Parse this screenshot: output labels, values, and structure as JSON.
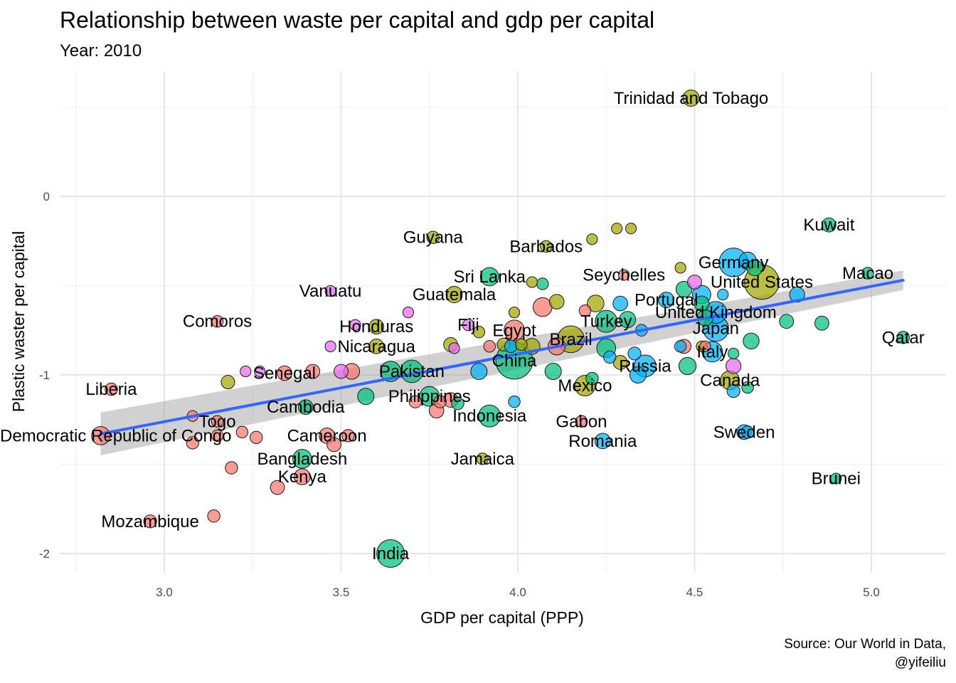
{
  "chart_data": {
    "type": "scatter",
    "title": "Relationship between waste per capital and gdp per capital",
    "subtitle": "Year: 2010",
    "xlabel": "GDP per capital (PPP)",
    "ylabel": "Plastic waster per capital",
    "caption_lines": [
      "Source: Our World in Data,",
      "@yifeiliu"
    ],
    "xlim": [
      2.75,
      5.2
    ],
    "ylim": [
      -2.1,
      0.6
    ],
    "x_ticks": [
      3.0,
      3.5,
      4.0,
      4.5,
      5.0
    ],
    "x_tick_labels": [
      "3.0",
      "3.5",
      "4.0",
      "4.5",
      "5.0"
    ],
    "y_ticks": [
      -2,
      -1,
      0
    ],
    "y_tick_labels": [
      "-2",
      "-1",
      "0"
    ],
    "grid": true,
    "colors": {
      "Africa": "#F8766D",
      "Americas": "#A3A500",
      "Asia": "#00BF7D",
      "Europe": "#00B0F6",
      "Oceania": "#E76BF3",
      "trend_line": "#3366FF",
      "confidence_band": "#999999"
    },
    "trend": {
      "x_start": 2.82,
      "y_start": -1.33,
      "x_end": 5.09,
      "y_end": -0.47,
      "band_half_width_start": 0.12,
      "band_half_width_end": 0.055
    },
    "points": [
      {
        "label": "Trinidad and Tobago",
        "x": 4.49,
        "y": 0.55,
        "size": 1.3,
        "group": "Americas"
      },
      {
        "label": "Kuwait",
        "x": 4.88,
        "y": -0.16,
        "size": 0.8,
        "group": "Asia"
      },
      {
        "label": "Guyana",
        "x": 3.76,
        "y": -0.23,
        "size": 0.5,
        "group": "Americas"
      },
      {
        "label": "Barbados",
        "x": 4.08,
        "y": -0.28,
        "size": 0.4,
        "group": "Americas"
      },
      {
        "label": "Germany",
        "x": 4.61,
        "y": -0.37,
        "size": 6.0,
        "group": "Europe"
      },
      {
        "label": "Macao",
        "x": 4.99,
        "y": -0.43,
        "size": 0.4,
        "group": "Asia"
      },
      {
        "label": "Sri Lanka",
        "x": 3.92,
        "y": -0.45,
        "size": 1.8,
        "group": "Asia"
      },
      {
        "label": "Seychelles",
        "x": 4.3,
        "y": -0.44,
        "size": 0.3,
        "group": "Africa"
      },
      {
        "label": "United States",
        "x": 4.69,
        "y": -0.48,
        "size": 9.5,
        "group": "Americas"
      },
      {
        "label": "Vanuatu",
        "x": 3.47,
        "y": -0.53,
        "size": 0.3,
        "group": "Oceania"
      },
      {
        "label": "Guatemala",
        "x": 3.82,
        "y": -0.55,
        "size": 1.3,
        "group": "Americas"
      },
      {
        "label": "Portugal",
        "x": 4.42,
        "y": -0.58,
        "size": 1.1,
        "group": "Europe"
      },
      {
        "label": "United Kingdom",
        "x": 4.56,
        "y": -0.65,
        "size": 3.0,
        "group": "Europe"
      },
      {
        "label": "Turkey",
        "x": 4.25,
        "y": -0.7,
        "size": 3.0,
        "group": "Asia"
      },
      {
        "label": "Comoros",
        "x": 3.15,
        "y": -0.7,
        "size": 0.4,
        "group": "Africa"
      },
      {
        "label": "Honduras",
        "x": 3.6,
        "y": -0.73,
        "size": 0.9,
        "group": "Americas"
      },
      {
        "label": "Fiji",
        "x": 3.86,
        "y": -0.72,
        "size": 0.4,
        "group": "Oceania"
      },
      {
        "label": "Egypt",
        "x": 3.99,
        "y": -0.75,
        "size": 2.5,
        "group": "Africa"
      },
      {
        "label": "Japan",
        "x": 4.56,
        "y": -0.74,
        "size": 4.5,
        "group": "Europe"
      },
      {
        "label": "Qatar",
        "x": 5.09,
        "y": -0.79,
        "size": 0.5,
        "group": "Asia"
      },
      {
        "label": "Brazil",
        "x": 4.15,
        "y": -0.8,
        "size": 5.0,
        "group": "Americas"
      },
      {
        "label": "Nicaragua",
        "x": 3.6,
        "y": -0.84,
        "size": 0.9,
        "group": "Americas"
      },
      {
        "label": "Italy",
        "x": 4.55,
        "y": -0.87,
        "size": 2.5,
        "group": "Europe"
      },
      {
        "label": "China",
        "x": 3.99,
        "y": -0.92,
        "size": 11.0,
        "group": "Asia"
      },
      {
        "label": "Russia",
        "x": 4.36,
        "y": -0.95,
        "size": 3.0,
        "group": "Europe"
      },
      {
        "label": "Senegal",
        "x": 3.34,
        "y": -0.99,
        "size": 0.9,
        "group": "Africa"
      },
      {
        "label": "Pakistan",
        "x": 3.7,
        "y": -0.98,
        "size": 3.2,
        "group": "Asia"
      },
      {
        "label": "Canada",
        "x": 4.6,
        "y": -1.03,
        "size": 2.0,
        "group": "Americas"
      },
      {
        "label": "Mexico",
        "x": 4.19,
        "y": -1.06,
        "size": 2.5,
        "group": "Americas"
      },
      {
        "label": "Liberia",
        "x": 2.85,
        "y": -1.08,
        "size": 0.5,
        "group": "Africa"
      },
      {
        "label": "Philippines",
        "x": 3.75,
        "y": -1.12,
        "size": 2.3,
        "group": "Asia"
      },
      {
        "label": "Cambodia",
        "x": 3.4,
        "y": -1.18,
        "size": 0.9,
        "group": "Asia"
      },
      {
        "label": "Indonesia",
        "x": 3.92,
        "y": -1.23,
        "size": 3.0,
        "group": "Asia"
      },
      {
        "label": "Togo",
        "x": 3.15,
        "y": -1.26,
        "size": 0.4,
        "group": "Africa"
      },
      {
        "label": "Gabon",
        "x": 4.18,
        "y": -1.26,
        "size": 0.4,
        "group": "Africa"
      },
      {
        "label": "Democratic Republic of Congo",
        "x": 2.82,
        "y": -1.34,
        "size": 1.8,
        "group": "Africa"
      },
      {
        "label": "Cameroon",
        "x": 3.46,
        "y": -1.34,
        "size": 1.1,
        "group": "Africa"
      },
      {
        "label": "Sweden",
        "x": 4.64,
        "y": -1.32,
        "size": 0.9,
        "group": "Europe"
      },
      {
        "label": "Romania",
        "x": 4.24,
        "y": -1.37,
        "size": 1.1,
        "group": "Europe"
      },
      {
        "label": "Bangladesh",
        "x": 3.39,
        "y": -1.47,
        "size": 2.0,
        "group": "Asia"
      },
      {
        "label": "Jamaica",
        "x": 3.9,
        "y": -1.47,
        "size": 0.4,
        "group": "Americas"
      },
      {
        "label": "Kenya",
        "x": 3.39,
        "y": -1.57,
        "size": 1.2,
        "group": "Africa"
      },
      {
        "label": "Brunei",
        "x": 4.9,
        "y": -1.58,
        "size": 0.3,
        "group": "Asia"
      },
      {
        "label": "Mozambique",
        "x": 2.96,
        "y": -1.82,
        "size": 0.6,
        "group": "Africa"
      },
      {
        "label": "India",
        "x": 3.64,
        "y": -2.0,
        "size": 5.5,
        "group": "Asia"
      },
      {
        "label": "",
        "x": 4.28,
        "y": -0.18,
        "size": 0.3,
        "group": "Americas"
      },
      {
        "label": "",
        "x": 4.32,
        "y": -0.18,
        "size": 0.3,
        "group": "Americas"
      },
      {
        "label": "",
        "x": 4.21,
        "y": -0.24,
        "size": 0.3,
        "group": "Americas"
      },
      {
        "label": "",
        "x": 4.65,
        "y": -0.36,
        "size": 1.5,
        "group": "Europe"
      },
      {
        "label": "",
        "x": 4.67,
        "y": -0.4,
        "size": 1.2,
        "group": "Asia"
      },
      {
        "label": "",
        "x": 4.46,
        "y": -0.4,
        "size": 0.3,
        "group": "Americas"
      },
      {
        "label": "",
        "x": 4.04,
        "y": -0.48,
        "size": 0.3,
        "group": "Americas"
      },
      {
        "label": "",
        "x": 4.07,
        "y": -0.49,
        "size": 0.4,
        "group": "Asia"
      },
      {
        "label": "",
        "x": 4.5,
        "y": -0.48,
        "size": 0.8,
        "group": "Oceania"
      },
      {
        "label": "",
        "x": 4.47,
        "y": -0.52,
        "size": 1.2,
        "group": "Asia"
      },
      {
        "label": "",
        "x": 4.52,
        "y": -0.55,
        "size": 1.8,
        "group": "Europe"
      },
      {
        "label": "",
        "x": 4.58,
        "y": -0.55,
        "size": 0.3,
        "group": "Europe"
      },
      {
        "label": "",
        "x": 4.79,
        "y": -0.55,
        "size": 1.0,
        "group": "Europe"
      },
      {
        "label": "",
        "x": 4.11,
        "y": -0.59,
        "size": 0.9,
        "group": "Americas"
      },
      {
        "label": "",
        "x": 4.07,
        "y": -0.62,
        "size": 2.0,
        "group": "Africa"
      },
      {
        "label": "",
        "x": 4.22,
        "y": -0.6,
        "size": 1.4,
        "group": "Americas"
      },
      {
        "label": "",
        "x": 4.29,
        "y": -0.6,
        "size": 0.9,
        "group": "Europe"
      },
      {
        "label": "",
        "x": 4.52,
        "y": -0.6,
        "size": 1.0,
        "group": "Asia"
      },
      {
        "label": "",
        "x": 4.19,
        "y": -0.64,
        "size": 0.4,
        "group": "Africa"
      },
      {
        "label": "",
        "x": 3.69,
        "y": -0.65,
        "size": 0.3,
        "group": "Oceania"
      },
      {
        "label": "",
        "x": 3.99,
        "y": -0.65,
        "size": 0.3,
        "group": "Americas"
      },
      {
        "label": "",
        "x": 4.31,
        "y": -0.69,
        "size": 1.3,
        "group": "Asia"
      },
      {
        "label": "",
        "x": 4.53,
        "y": -0.68,
        "size": 1.2,
        "group": "Asia"
      },
      {
        "label": "",
        "x": 4.76,
        "y": -0.7,
        "size": 0.8,
        "group": "Asia"
      },
      {
        "label": "",
        "x": 4.86,
        "y": -0.71,
        "size": 0.8,
        "group": "Asia"
      },
      {
        "label": "",
        "x": 3.54,
        "y": -0.72,
        "size": 0.3,
        "group": "Oceania"
      },
      {
        "label": "",
        "x": 3.89,
        "y": -0.76,
        "size": 0.4,
        "group": "Americas"
      },
      {
        "label": "",
        "x": 4.35,
        "y": -0.75,
        "size": 0.4,
        "group": "Europe"
      },
      {
        "label": "",
        "x": 4.66,
        "y": -0.81,
        "size": 1.2,
        "group": "Asia"
      },
      {
        "label": "",
        "x": 3.81,
        "y": -0.83,
        "size": 0.8,
        "group": "Americas"
      },
      {
        "label": "",
        "x": 3.92,
        "y": -0.84,
        "size": 0.4,
        "group": "Africa"
      },
      {
        "label": "",
        "x": 3.96,
        "y": -0.83,
        "size": 0.6,
        "group": "Americas"
      },
      {
        "label": "",
        "x": 3.98,
        "y": -0.84,
        "size": 0.5,
        "group": "Europe"
      },
      {
        "label": "",
        "x": 4.01,
        "y": -0.83,
        "size": 0.4,
        "group": "Americas"
      },
      {
        "label": "",
        "x": 4.04,
        "y": -0.84,
        "size": 1.2,
        "group": "Americas"
      },
      {
        "label": "",
        "x": 4.11,
        "y": -0.84,
        "size": 1.5,
        "group": "Africa"
      },
      {
        "label": "",
        "x": 4.25,
        "y": -0.85,
        "size": 2.0,
        "group": "Asia"
      },
      {
        "label": "",
        "x": 3.47,
        "y": -0.84,
        "size": 0.3,
        "group": "Oceania"
      },
      {
        "label": "",
        "x": 3.82,
        "y": -0.85,
        "size": 0.3,
        "group": "Oceania"
      },
      {
        "label": "",
        "x": 4.46,
        "y": -0.84,
        "size": 0.4,
        "group": "Europe"
      },
      {
        "label": "",
        "x": 4.47,
        "y": -0.84,
        "size": 0.8,
        "group": "Africa"
      },
      {
        "label": "",
        "x": 4.52,
        "y": -0.84,
        "size": 0.3,
        "group": "Americas"
      },
      {
        "label": "",
        "x": 4.53,
        "y": -0.84,
        "size": 0.3,
        "group": "Africa"
      },
      {
        "label": "",
        "x": 4.61,
        "y": -0.88,
        "size": 0.3,
        "group": "Asia"
      },
      {
        "label": "",
        "x": 4.33,
        "y": -0.88,
        "size": 0.6,
        "group": "Europe"
      },
      {
        "label": "",
        "x": 4.26,
        "y": -0.9,
        "size": 0.5,
        "group": "Europe"
      },
      {
        "label": "",
        "x": 4.29,
        "y": -0.93,
        "size": 0.8,
        "group": "Americas"
      },
      {
        "label": "",
        "x": 4.48,
        "y": -0.95,
        "size": 1.5,
        "group": "Asia"
      },
      {
        "label": "",
        "x": 4.61,
        "y": -0.95,
        "size": 1.0,
        "group": "Oceania"
      },
      {
        "label": "",
        "x": 3.23,
        "y": -0.98,
        "size": 0.3,
        "group": "Oceania"
      },
      {
        "label": "",
        "x": 3.27,
        "y": -0.98,
        "size": 0.3,
        "group": "Oceania"
      },
      {
        "label": "",
        "x": 3.42,
        "y": -0.98,
        "size": 0.8,
        "group": "Africa"
      },
      {
        "label": "",
        "x": 3.5,
        "y": -0.98,
        "size": 0.8,
        "group": "Oceania"
      },
      {
        "label": "",
        "x": 3.53,
        "y": -0.98,
        "size": 1.2,
        "group": "Africa"
      },
      {
        "label": "",
        "x": 3.64,
        "y": -0.98,
        "size": 2.5,
        "group": "Asia"
      },
      {
        "label": "",
        "x": 3.89,
        "y": -0.98,
        "size": 1.3,
        "group": "Europe"
      },
      {
        "label": "",
        "x": 4.1,
        "y": -0.98,
        "size": 1.3,
        "group": "Asia"
      },
      {
        "label": "",
        "x": 4.34,
        "y": -1.0,
        "size": 1.3,
        "group": "Europe"
      },
      {
        "label": "",
        "x": 4.21,
        "y": -1.02,
        "size": 0.5,
        "group": "Asia"
      },
      {
        "label": "",
        "x": 3.18,
        "y": -1.04,
        "size": 0.7,
        "group": "Americas"
      },
      {
        "label": "",
        "x": 4.65,
        "y": -1.07,
        "size": 0.4,
        "group": "Asia"
      },
      {
        "label": "",
        "x": 4.61,
        "y": -1.09,
        "size": 0.6,
        "group": "Europe"
      },
      {
        "label": "",
        "x": 3.57,
        "y": -1.12,
        "size": 1.3,
        "group": "Asia"
      },
      {
        "label": "",
        "x": 3.71,
        "y": -1.15,
        "size": 0.5,
        "group": "Africa"
      },
      {
        "label": "",
        "x": 3.78,
        "y": -1.15,
        "size": 0.5,
        "group": "Africa"
      },
      {
        "label": "",
        "x": 3.81,
        "y": -1.14,
        "size": 0.9,
        "group": "Africa"
      },
      {
        "label": "",
        "x": 3.83,
        "y": -1.16,
        "size": 0.5,
        "group": "Asia"
      },
      {
        "label": "",
        "x": 3.77,
        "y": -1.2,
        "size": 0.9,
        "group": "Africa"
      },
      {
        "label": "",
        "x": 3.99,
        "y": -1.15,
        "size": 0.4,
        "group": "Europe"
      },
      {
        "label": "",
        "x": 3.08,
        "y": -1.23,
        "size": 0.3,
        "group": "Africa"
      },
      {
        "label": "",
        "x": 3.22,
        "y": -1.32,
        "size": 0.4,
        "group": "Africa"
      },
      {
        "label": "",
        "x": 3.15,
        "y": -1.34,
        "size": 0.4,
        "group": "Africa"
      },
      {
        "label": "",
        "x": 3.26,
        "y": -1.35,
        "size": 0.5,
        "group": "Africa"
      },
      {
        "label": "",
        "x": 3.08,
        "y": -1.38,
        "size": 0.5,
        "group": "Africa"
      },
      {
        "label": "",
        "x": 3.48,
        "y": -1.39,
        "size": 0.8,
        "group": "Africa"
      },
      {
        "label": "",
        "x": 3.52,
        "y": -1.34,
        "size": 0.5,
        "group": "Africa"
      },
      {
        "label": "",
        "x": 4.65,
        "y": -1.32,
        "size": 0.5,
        "group": "Europe"
      },
      {
        "label": "",
        "x": 3.19,
        "y": -1.52,
        "size": 0.5,
        "group": "Africa"
      },
      {
        "label": "",
        "x": 3.32,
        "y": -1.63,
        "size": 0.8,
        "group": "Africa"
      },
      {
        "label": "",
        "x": 3.14,
        "y": -1.79,
        "size": 0.5,
        "group": "Africa"
      }
    ]
  }
}
